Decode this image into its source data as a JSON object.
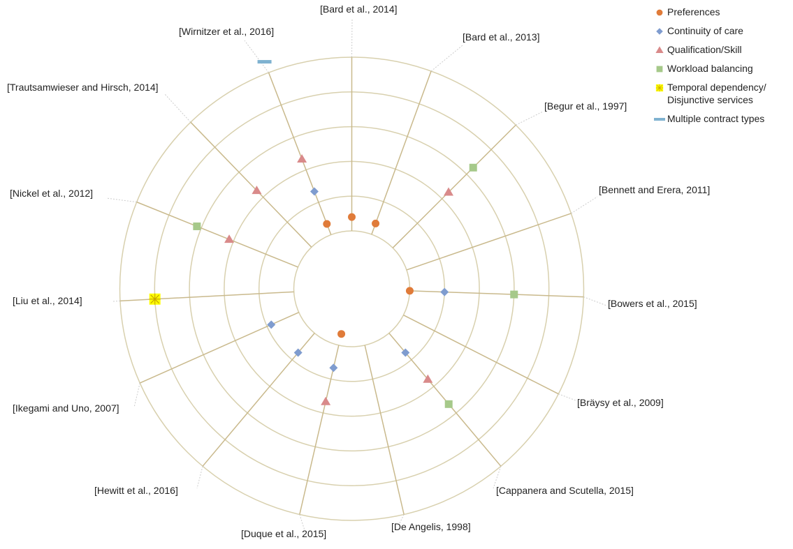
{
  "chart_data": {
    "type": "radial",
    "categories": [
      "[Bard et al., 2014]",
      "[Bard et al., 2013]",
      "[Begur et al., 1997]",
      "[Bennett and Erera, 2011]",
      "[Bowers et al., 2015]",
      "[Bräysy et al., 2009]",
      "[Cappanera and Scutella, 2015]",
      "[De Angelis, 1998]",
      "[Duque et al., 2015]",
      "[Hewitt et al., 2016]",
      "[Ikegami and Uno, 2007]",
      "[Liu et al., 2014]",
      "[Nickel et al., 2012]",
      "[Trautsamwieser and Hirsch, 2014]",
      "[Wirnitzer et al., 2016]"
    ],
    "rlim": [
      0,
      100
    ],
    "rticks": [
      25,
      40,
      55,
      70,
      85,
      100
    ],
    "series": [
      {
        "name": "Preferences",
        "color": "#e07b39",
        "marker": "circle",
        "values": [
          31,
          30,
          null,
          null,
          25,
          null,
          null,
          null,
          20,
          null,
          null,
          null,
          null,
          null,
          30
        ]
      },
      {
        "name": "Continuity of care",
        "color": "#7f9ccf",
        "marker": "diamond",
        "values": [
          null,
          null,
          null,
          null,
          40,
          null,
          36,
          null,
          35,
          36,
          38,
          null,
          null,
          null,
          45
        ]
      },
      {
        "name": "Qualification/Skill",
        "color": "#d98a8a",
        "marker": "triangle",
        "values": [
          null,
          null,
          59,
          null,
          null,
          null,
          51,
          null,
          50,
          null,
          null,
          null,
          57,
          59,
          60
        ]
      },
      {
        "name": "Workload balancing",
        "color": "#a6c98a",
        "marker": "square",
        "values": [
          null,
          null,
          74,
          null,
          70,
          null,
          65,
          null,
          null,
          null,
          null,
          null,
          72,
          null,
          null
        ]
      },
      {
        "name": "Temporal dependency/ Disjunctive services",
        "color": "#ffff00",
        "marker": "star",
        "values": [
          null,
          null,
          null,
          null,
          null,
          null,
          null,
          null,
          null,
          null,
          null,
          85,
          null,
          null,
          null
        ]
      },
      {
        "name": "Multiple contract types",
        "color": "#7fb2d0",
        "marker": "dash",
        "values": [
          null,
          null,
          null,
          null,
          null,
          null,
          null,
          null,
          null,
          null,
          null,
          null,
          null,
          null,
          105
        ]
      }
    ]
  }
}
